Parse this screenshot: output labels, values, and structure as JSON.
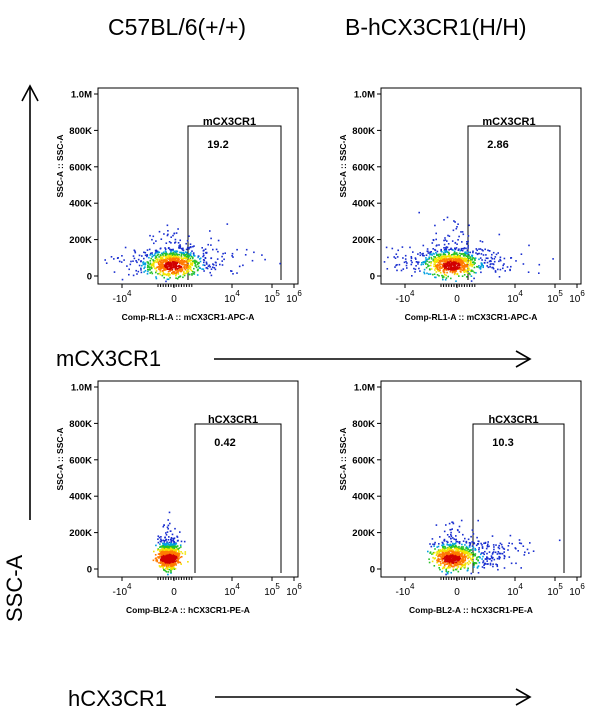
{
  "titles": {
    "left": "C57BL/6(+/+)",
    "right": "B-hCX3CR1(H/H)"
  },
  "axis_labels": {
    "mcx3cr1": "mCX3CR1",
    "hcx3cr1": "hCX3CR1",
    "ssc": "SSC-A"
  },
  "chart_data": [
    {
      "type": "scatter",
      "panel": "top-left",
      "ylabel": "SSC-A :: SSC-A",
      "xlabel": "Comp-RL1-A :: mCX3CR1-APC-A",
      "y_ticks": [
        "0",
        "200K",
        "400K",
        "600K",
        "800K",
        "1.0M"
      ],
      "x_ticks": [
        "-10^4",
        "0",
        "10^4",
        "10^5",
        "10^6"
      ],
      "gate": {
        "name": "mCX3CR1",
        "value": "19.2"
      },
      "population": "broad"
    },
    {
      "type": "scatter",
      "panel": "top-right",
      "ylabel": "SSC-A :: SSC-A",
      "xlabel": "Comp-RL1-A :: mCX3CR1-APC-A",
      "y_ticks": [
        "0",
        "200K",
        "400K",
        "600K",
        "800K",
        "1.0M"
      ],
      "x_ticks": [
        "-10^4",
        "0",
        "10^4",
        "10^5",
        "10^6"
      ],
      "gate": {
        "name": "mCX3CR1",
        "value": "2.86"
      },
      "population": "broad"
    },
    {
      "type": "scatter",
      "panel": "bottom-left",
      "ylabel": "SSC-A :: SSC-A",
      "xlabel": "Comp-BL2-A :: hCX3CR1-PE-A",
      "y_ticks": [
        "0",
        "200K",
        "400K",
        "600K",
        "800K",
        "1.0M"
      ],
      "x_ticks": [
        "-10^4",
        "0",
        "10^4",
        "10^5",
        "10^6"
      ],
      "gate": {
        "name": "hCX3CR1",
        "value": "0.42"
      },
      "population": "tight"
    },
    {
      "type": "scatter",
      "panel": "bottom-right",
      "ylabel": "SSC-A :: SSC-A",
      "xlabel": "Comp-BL2-A :: hCX3CR1-PE-A",
      "y_ticks": [
        "0",
        "200K",
        "400K",
        "600K",
        "800K",
        "1.0M"
      ],
      "x_ticks": [
        "-10^4",
        "0",
        "10^4",
        "10^5",
        "10^6"
      ],
      "gate": {
        "name": "hCX3CR1",
        "value": "10.3"
      },
      "population": "tail"
    }
  ]
}
